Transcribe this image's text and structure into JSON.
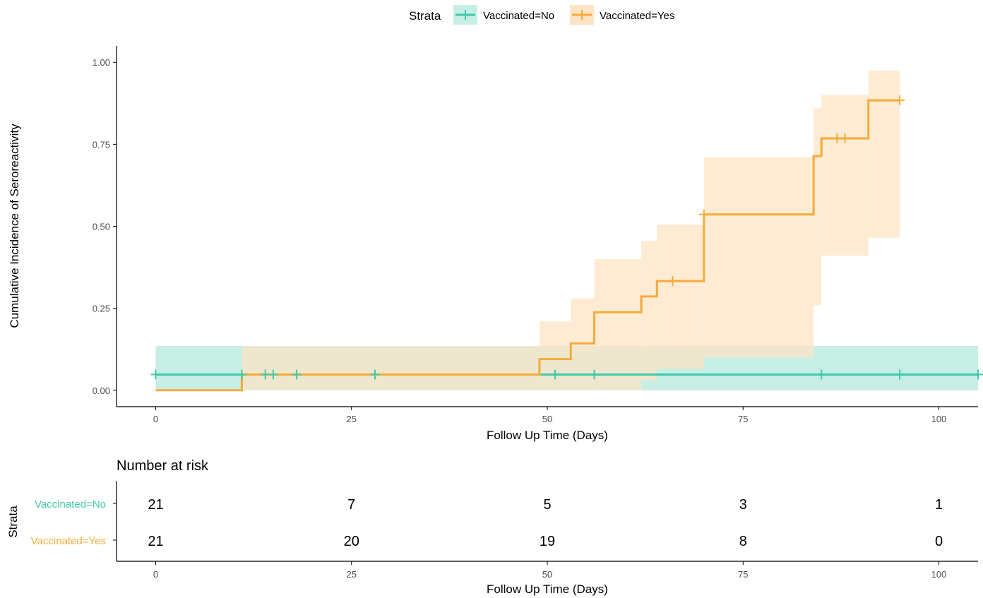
{
  "legend": {
    "title": "Strata",
    "items": [
      {
        "label": "Vaccinated=No",
        "color": "#3fc9a8"
      },
      {
        "label": "Vaccinated=Yes",
        "color": "#f5ab3a"
      }
    ]
  },
  "colors": {
    "no": "#3fc9a8",
    "no_band": "#c6eee5",
    "yes": "#f5ab3a",
    "yes_band": "#fce4c4",
    "overlap_band": "#d6d9b8",
    "axis": "#000000",
    "tick_text": "#4d4d4d"
  },
  "chart_data": {
    "type": "line",
    "title": "",
    "xlabel": "Follow Up Time (Days)",
    "ylabel": "Cumulative Incidence of Seroreactivity",
    "xlim": [
      -5,
      105
    ],
    "ylim": [
      -0.05,
      1.05
    ],
    "x_ticks": [
      0,
      25,
      50,
      75,
      100
    ],
    "x_tick_labels": [
      "0",
      "25",
      "50",
      "75",
      "100"
    ],
    "y_ticks": [
      0,
      0.25,
      0.5,
      0.75,
      1.0
    ],
    "y_tick_labels": [
      "0.00",
      "0.25",
      "0.50",
      "0.75",
      "1.00"
    ],
    "legend_position": "top",
    "grid": false,
    "series": [
      {
        "name": "Vaccinated=No",
        "color": "#3fc9a8",
        "step_x": [
          0,
          105
        ],
        "step_y": [
          0.048,
          0.048
        ],
        "censor_x": [
          0,
          11,
          14,
          15,
          18,
          28,
          51,
          56,
          85,
          95,
          105
        ],
        "ci_x": [
          0,
          105
        ],
        "ci_lower": [
          0,
          0
        ],
        "ci_upper": [
          0.135,
          0.135
        ]
      },
      {
        "name": "Vaccinated=Yes",
        "color": "#f5ab3a",
        "step_x": [
          0,
          11,
          49,
          53,
          56,
          62,
          64,
          70,
          84,
          85,
          91,
          95
        ],
        "step_y": [
          0,
          0.048,
          0.095,
          0.143,
          0.238,
          0.286,
          0.333,
          0.536,
          0.714,
          0.768,
          0.884,
          0.884
        ],
        "censor_x": [
          66,
          70,
          87,
          88,
          95
        ],
        "ci_x": [
          0,
          11,
          49,
          53,
          56,
          62,
          64,
          70,
          84,
          85,
          91,
          95
        ],
        "ci_lower": [
          0,
          0,
          0,
          0,
          0,
          0.03,
          0.065,
          0.1,
          0.26,
          0.41,
          0.465,
          0.418
        ],
        "ci_upper": [
          0,
          0.135,
          0.21,
          0.28,
          0.4,
          0.455,
          0.505,
          0.71,
          0.86,
          0.9,
          0.975,
          0.975
        ]
      }
    ]
  },
  "risk_table": {
    "title": "Number at risk",
    "ylabel": "Strata",
    "xlabel": "Follow Up Time (Days)",
    "x_ticks": [
      0,
      25,
      50,
      75,
      100
    ],
    "x_tick_labels": [
      "0",
      "25",
      "50",
      "75",
      "100"
    ],
    "rows": [
      {
        "label": "Vaccinated=No",
        "color": "#3fc9a8",
        "values": [
          "21",
          "7",
          "5",
          "3",
          "1"
        ]
      },
      {
        "label": "Vaccinated=Yes",
        "color": "#f5ab3a",
        "values": [
          "21",
          "20",
          "19",
          "8",
          "0"
        ]
      }
    ]
  }
}
